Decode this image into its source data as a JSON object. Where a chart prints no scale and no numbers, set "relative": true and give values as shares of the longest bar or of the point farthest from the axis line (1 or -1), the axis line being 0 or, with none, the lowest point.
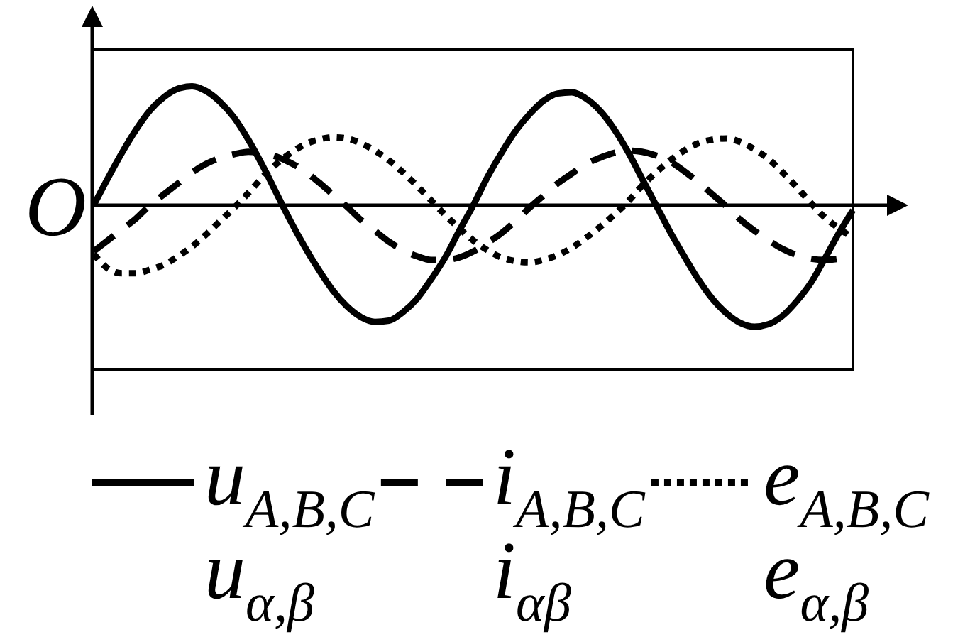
{
  "chart_data": {
    "type": "line",
    "relative": true,
    "categories": [
      null,
      null,
      null,
      null,
      null,
      null,
      null,
      null,
      null,
      null,
      null,
      null,
      null,
      null,
      null,
      null,
      null,
      null,
      null,
      null,
      null,
      null,
      null,
      null,
      null,
      null,
      null,
      null,
      null,
      null,
      null,
      null,
      null,
      null,
      null,
      null,
      null,
      null,
      null,
      null,
      null,
      null,
      null,
      null,
      null,
      null,
      null,
      null,
      null,
      null,
      null,
      null,
      null,
      null,
      null
    ],
    "series": [
      {
        "name": "u$_{A,B,C}$\nu$_{α,β}$",
        "color": "#000000",
        "line_style": "solid",
        "values": [
          0,
          0.22,
          0.43,
          0.62,
          0.78,
          0.89,
          0.96,
          0.98,
          0.94,
          0.85,
          0.72,
          0.54,
          0.33,
          0.1,
          -0.13,
          -0.34,
          -0.53,
          -0.7,
          -0.83,
          -0.92,
          -0.96,
          -0.95,
          -0.88,
          -0.77,
          -0.61,
          -0.43,
          -0.21,
          0,
          0.23,
          0.43,
          0.61,
          0.75,
          0.86,
          0.92,
          0.93,
          0.88,
          0.78,
          0.63,
          0.44,
          0.22,
          0,
          -0.22,
          -0.42,
          -0.61,
          -0.77,
          -0.89,
          -0.97,
          -1,
          -0.98,
          -0.91,
          -0.79,
          -0.64,
          -0.44,
          -0.23,
          -0.04
        ]
      },
      {
        "name": "i$_{A,B,C}$\ni$_{αβ}$",
        "color": "#000000",
        "line_style": "dashed",
        "values": [
          -0.38,
          -0.29,
          -0.2,
          -0.11,
          0,
          0.09,
          0.18,
          0.27,
          0.34,
          0.39,
          0.42,
          0.44,
          0.43,
          0.4,
          0.35,
          0.28,
          0.19,
          0.09,
          -0.01,
          -0.12,
          -0.21,
          -0.3,
          -0.37,
          -0.42,
          -0.45,
          -0.45,
          -0.43,
          -0.38,
          -0.31,
          -0.23,
          -0.13,
          -0.02,
          0.08,
          0.18,
          0.26,
          0.34,
          0.39,
          0.43,
          0.45,
          0.44,
          0.41,
          0.36,
          0.28,
          0.19,
          0.09,
          -0.01,
          -0.12,
          -0.21,
          -0.29,
          -0.36,
          -0.41,
          -0.44,
          -0.45,
          -0.44,
          -0.4
        ]
      },
      {
        "name": "e$_{A,B,C}$\ne$_{α,β}$",
        "color": "#000000",
        "line_style": "dotted",
        "values": [
          -0.4,
          -0.52,
          -0.56,
          -0.56,
          -0.53,
          -0.49,
          -0.42,
          -0.34,
          -0.24,
          -0.13,
          -0.02,
          0.1,
          0.23,
          0.34,
          0.43,
          0.5,
          0.54,
          0.56,
          0.55,
          0.51,
          0.45,
          0.37,
          0.27,
          0.16,
          0.04,
          -0.08,
          -0.19,
          -0.29,
          -0.37,
          -0.43,
          -0.46,
          -0.47,
          -0.45,
          -0.41,
          -0.35,
          -0.27,
          -0.18,
          -0.08,
          0.03,
          0.16,
          0.27,
          0.37,
          0.45,
          0.51,
          0.54,
          0.55,
          0.52,
          0.46,
          0.38,
          0.27,
          0.15,
          0.02,
          -0.1,
          -0.19,
          -0.27
        ]
      }
    ],
    "annotations": [
      "O"
    ],
    "legend": "bottom"
  }
}
